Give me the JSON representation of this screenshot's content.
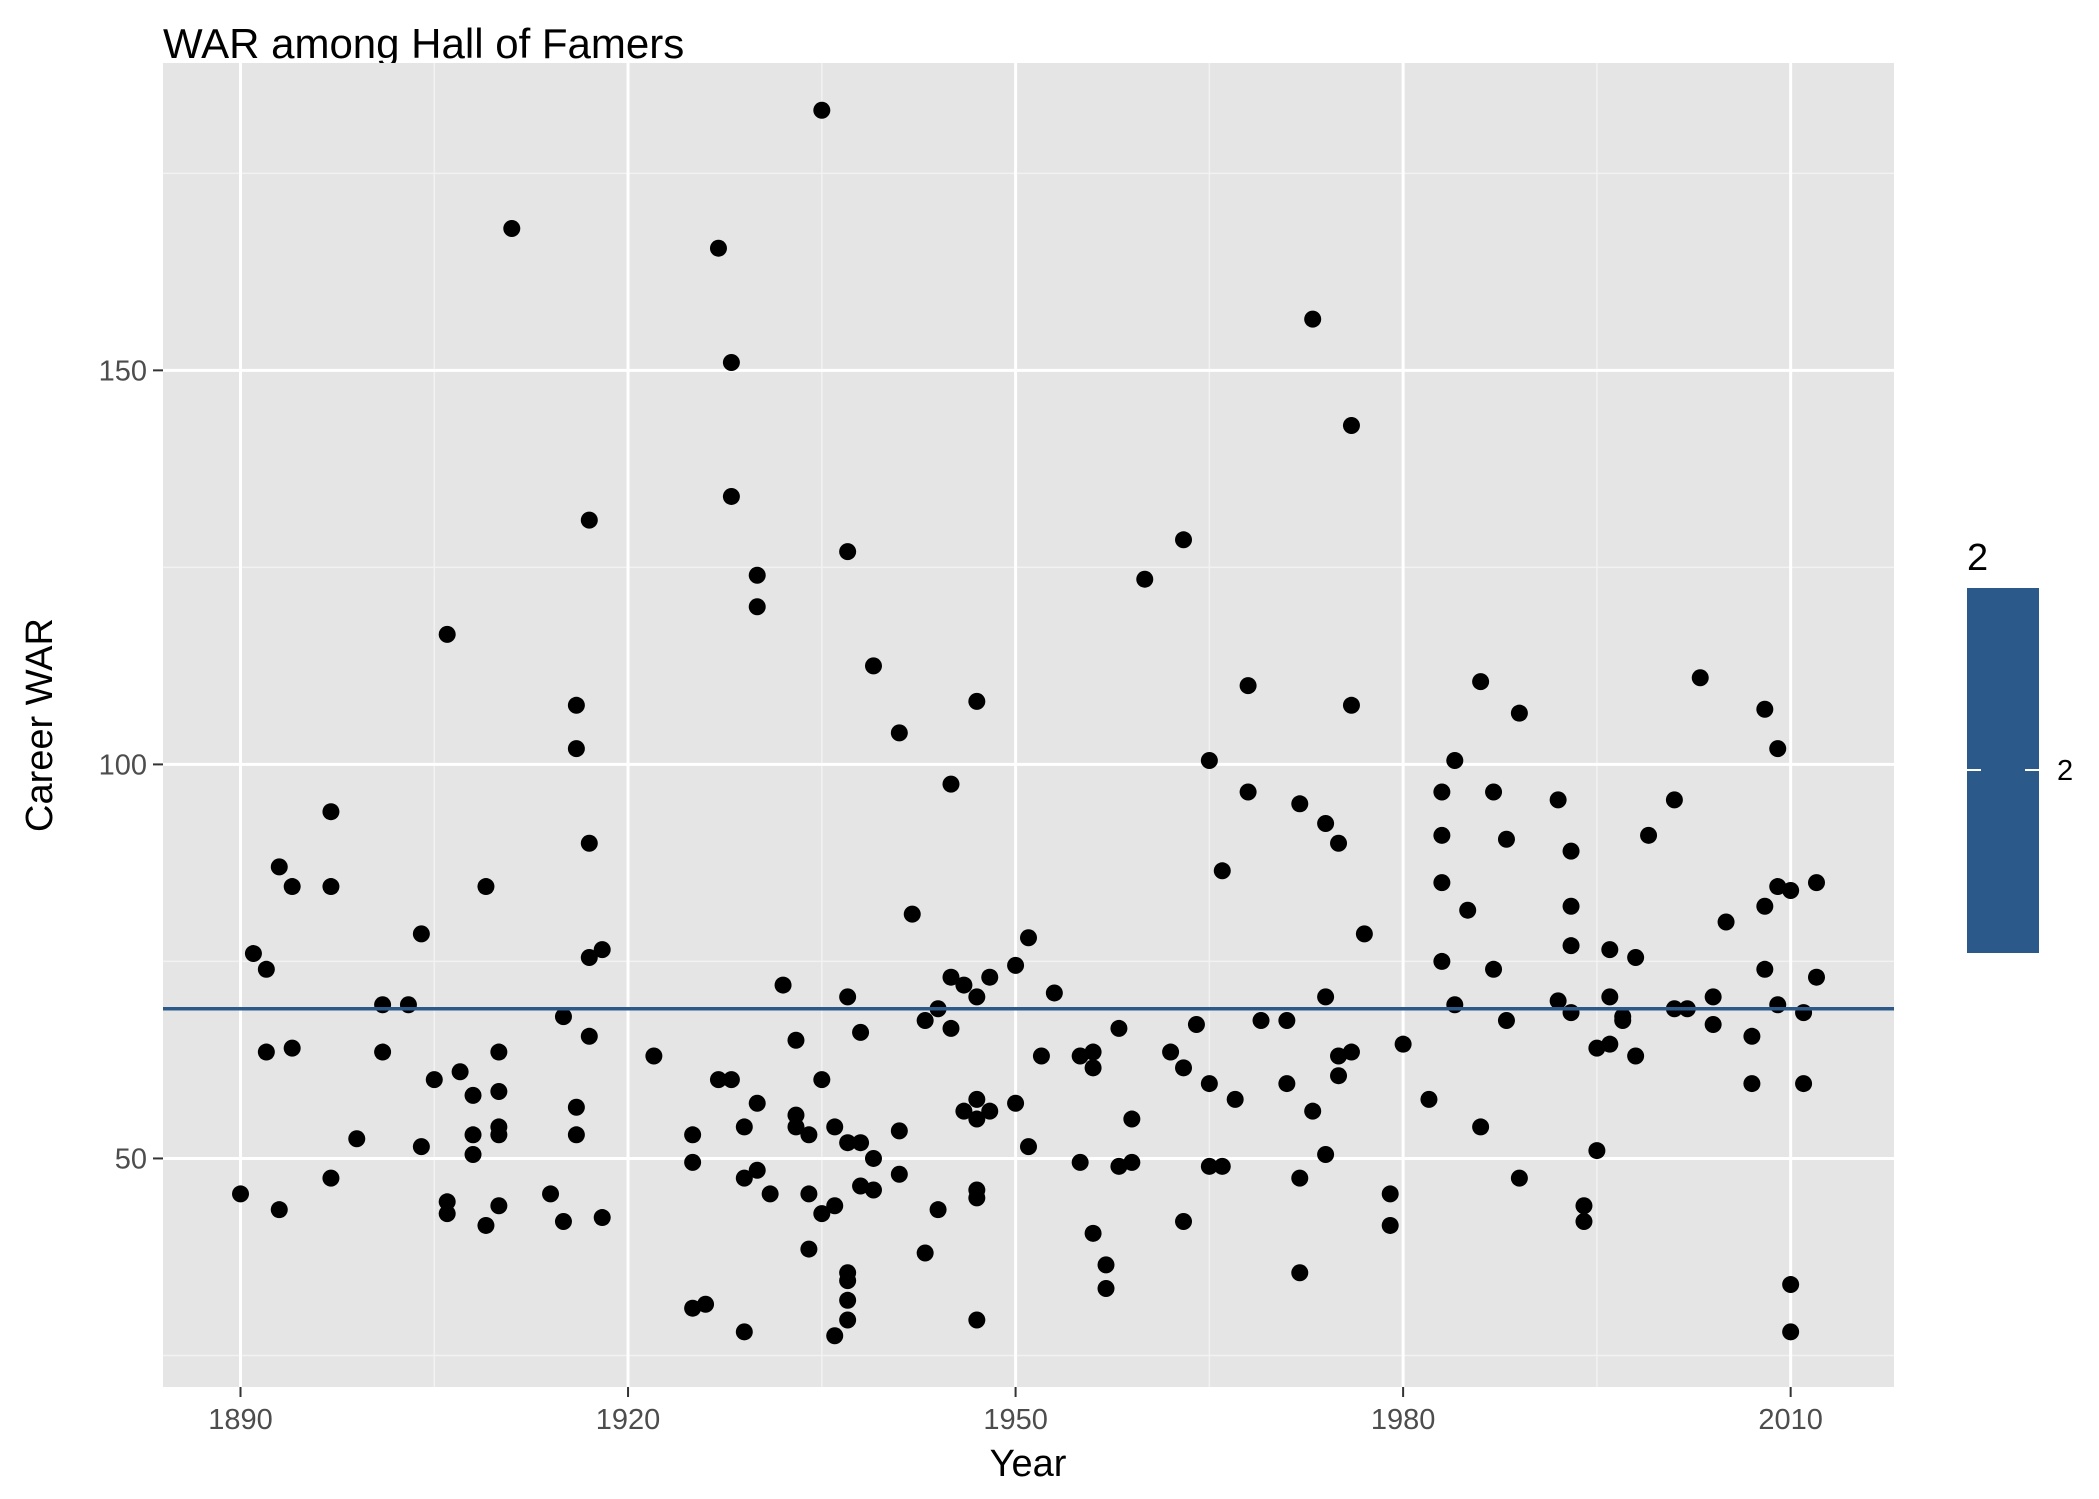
{
  "chart_data": {
    "type": "scatter",
    "title": "WAR among Hall of Famers",
    "xlabel": "Year",
    "ylabel": "Career WAR",
    "xlim": [
      1884,
      2018
    ],
    "ylim": [
      21,
      189
    ],
    "x_ticks": [
      1890,
      1920,
      1950,
      1980,
      2010
    ],
    "y_ticks": [
      50,
      100,
      150
    ],
    "grid": true,
    "reference_line": {
      "y": 69,
      "color": "#2b5a8a"
    },
    "legend": {
      "title": "2",
      "label": "2",
      "placement": "right",
      "color": "#2b5a8a"
    },
    "point_color": "#000000",
    "points": [
      [
        1890,
        45.5
      ],
      [
        1891,
        76
      ],
      [
        1892,
        74
      ],
      [
        1892,
        63.5
      ],
      [
        1893,
        87
      ],
      [
        1893,
        43.5
      ],
      [
        1894,
        84.5
      ],
      [
        1894,
        64
      ],
      [
        1897,
        94
      ],
      [
        1897,
        84.5
      ],
      [
        1897,
        47.5
      ],
      [
        1899,
        52.5
      ],
      [
        1901,
        69.5
      ],
      [
        1901,
        63.5
      ],
      [
        1903,
        69.5
      ],
      [
        1904,
        78.5
      ],
      [
        1904,
        51.5
      ],
      [
        1905,
        60
      ],
      [
        1906,
        116.5
      ],
      [
        1906,
        44.5
      ],
      [
        1906,
        43
      ],
      [
        1907,
        61
      ],
      [
        1908,
        58
      ],
      [
        1908,
        53
      ],
      [
        1908,
        50.5
      ],
      [
        1909,
        84.5
      ],
      [
        1909,
        41.5
      ],
      [
        1910,
        63.5
      ],
      [
        1910,
        58.5
      ],
      [
        1910,
        54
      ],
      [
        1910,
        53
      ],
      [
        1910,
        44
      ],
      [
        1911,
        168
      ],
      [
        1914,
        45.5
      ],
      [
        1915,
        68
      ],
      [
        1915,
        42
      ],
      [
        1916,
        107.5
      ],
      [
        1916,
        102
      ],
      [
        1916,
        56.5
      ],
      [
        1916,
        53
      ],
      [
        1917,
        131
      ],
      [
        1917,
        90
      ],
      [
        1917,
        75.5
      ],
      [
        1917,
        65.5
      ],
      [
        1918,
        76.5
      ],
      [
        1918,
        42.5
      ],
      [
        1922,
        63
      ],
      [
        1925,
        53
      ],
      [
        1925,
        49.5
      ],
      [
        1925,
        31
      ],
      [
        1926,
        31.5
      ],
      [
        1927,
        165.5
      ],
      [
        1927,
        60
      ],
      [
        1928,
        151
      ],
      [
        1928,
        134
      ],
      [
        1928,
        60
      ],
      [
        1929,
        54
      ],
      [
        1929,
        47.5
      ],
      [
        1929,
        28
      ],
      [
        1930,
        124
      ],
      [
        1930,
        120
      ],
      [
        1930,
        57
      ],
      [
        1930,
        48.5
      ],
      [
        1931,
        45.5
      ],
      [
        1932,
        72
      ],
      [
        1933,
        65
      ],
      [
        1933,
        55.5
      ],
      [
        1933,
        54
      ],
      [
        1934,
        53
      ],
      [
        1934,
        45.5
      ],
      [
        1934,
        38.5
      ],
      [
        1935,
        183
      ],
      [
        1935,
        60
      ],
      [
        1935,
        43
      ],
      [
        1936,
        54
      ],
      [
        1936,
        44
      ],
      [
        1936,
        27.5
      ],
      [
        1937,
        127
      ],
      [
        1937,
        70.5
      ],
      [
        1937,
        52
      ],
      [
        1937,
        35.5
      ],
      [
        1937,
        34.5
      ],
      [
        1937,
        32
      ],
      [
        1937,
        29.5
      ],
      [
        1938,
        66
      ],
      [
        1938,
        52
      ],
      [
        1938,
        46.5
      ],
      [
        1939,
        112.5
      ],
      [
        1939,
        50
      ],
      [
        1939,
        46
      ],
      [
        1941,
        104
      ],
      [
        1941,
        53.5
      ],
      [
        1941,
        48
      ],
      [
        1942,
        81
      ],
      [
        1943,
        67.5
      ],
      [
        1943,
        38
      ],
      [
        1944,
        69
      ],
      [
        1944,
        43.5
      ],
      [
        1945,
        97.5
      ],
      [
        1945,
        73
      ],
      [
        1945,
        66.5
      ],
      [
        1946,
        72
      ],
      [
        1946,
        56
      ],
      [
        1947,
        108
      ],
      [
        1947,
        70.5
      ],
      [
        1947,
        57.5
      ],
      [
        1947,
        55
      ],
      [
        1947,
        46
      ],
      [
        1947,
        45
      ],
      [
        1947,
        29.5
      ],
      [
        1948,
        73
      ],
      [
        1948,
        56
      ],
      [
        1950,
        74.5
      ],
      [
        1950,
        57
      ],
      [
        1951,
        78
      ],
      [
        1951,
        51.5
      ],
      [
        1952,
        63
      ],
      [
        1953,
        71
      ],
      [
        1955,
        63
      ],
      [
        1955,
        49.5
      ],
      [
        1956,
        63.5
      ],
      [
        1956,
        61.5
      ],
      [
        1956,
        40.5
      ],
      [
        1957,
        36.5
      ],
      [
        1957,
        33.5
      ],
      [
        1958,
        66.5
      ],
      [
        1958,
        49
      ],
      [
        1959,
        55
      ],
      [
        1959,
        49.5
      ],
      [
        1960,
        123.5
      ],
      [
        1962,
        63.5
      ],
      [
        1963,
        128.5
      ],
      [
        1963,
        61.5
      ],
      [
        1963,
        42
      ],
      [
        1964,
        67
      ],
      [
        1965,
        100.5
      ],
      [
        1965,
        59.5
      ],
      [
        1965,
        49
      ],
      [
        1966,
        86.5
      ],
      [
        1966,
        49
      ],
      [
        1967,
        57.5
      ],
      [
        1968,
        110
      ],
      [
        1968,
        96.5
      ],
      [
        1969,
        67.5
      ],
      [
        1971,
        67.5
      ],
      [
        1971,
        59.5
      ],
      [
        1972,
        95
      ],
      [
        1972,
        47.5
      ],
      [
        1972,
        35.5
      ],
      [
        1973,
        156.5
      ],
      [
        1973,
        56
      ],
      [
        1974,
        92.5
      ],
      [
        1974,
        70.5
      ],
      [
        1974,
        50.5
      ],
      [
        1975,
        90
      ],
      [
        1975,
        63
      ],
      [
        1975,
        60.5
      ],
      [
        1976,
        143
      ],
      [
        1976,
        107.5
      ],
      [
        1976,
        63.5
      ],
      [
        1977,
        78.5
      ],
      [
        1979,
        45.5
      ],
      [
        1979,
        41.5
      ],
      [
        1980,
        64.5
      ],
      [
        1982,
        57.5
      ],
      [
        1983,
        96.5
      ],
      [
        1983,
        91
      ],
      [
        1983,
        85
      ],
      [
        1983,
        75
      ],
      [
        1984,
        100.5
      ],
      [
        1984,
        69.5
      ],
      [
        1985,
        81.5
      ],
      [
        1986,
        110.5
      ],
      [
        1986,
        54
      ],
      [
        1987,
        96.5
      ],
      [
        1987,
        74
      ],
      [
        1988,
        90.5
      ],
      [
        1988,
        67.5
      ],
      [
        1989,
        106.5
      ],
      [
        1989,
        47.5
      ],
      [
        1992,
        95.5
      ],
      [
        1992,
        70
      ],
      [
        1993,
        89
      ],
      [
        1993,
        82
      ],
      [
        1993,
        77
      ],
      [
        1993,
        68.5
      ],
      [
        1994,
        44
      ],
      [
        1994,
        42
      ],
      [
        1995,
        64
      ],
      [
        1995,
        51
      ],
      [
        1996,
        76.5
      ],
      [
        1996,
        70.5
      ],
      [
        1996,
        64.5
      ],
      [
        1997,
        68
      ],
      [
        1997,
        67.5
      ],
      [
        1998,
        75.5
      ],
      [
        1998,
        63
      ],
      [
        1999,
        91
      ],
      [
        2001,
        95.5
      ],
      [
        2001,
        69
      ],
      [
        2002,
        69
      ],
      [
        2003,
        111
      ],
      [
        2004,
        70.5
      ],
      [
        2004,
        67
      ],
      [
        2005,
        80
      ],
      [
        2007,
        65.5
      ],
      [
        2007,
        59.5
      ],
      [
        2008,
        107
      ],
      [
        2008,
        82
      ],
      [
        2008,
        74
      ],
      [
        2009,
        102
      ],
      [
        2009,
        84.5
      ],
      [
        2009,
        69.5
      ],
      [
        2010,
        84
      ],
      [
        2010,
        34
      ],
      [
        2010,
        28
      ],
      [
        2011,
        68.5
      ],
      [
        2011,
        59.5
      ],
      [
        2012,
        85
      ],
      [
        2012,
        73
      ]
    ]
  }
}
